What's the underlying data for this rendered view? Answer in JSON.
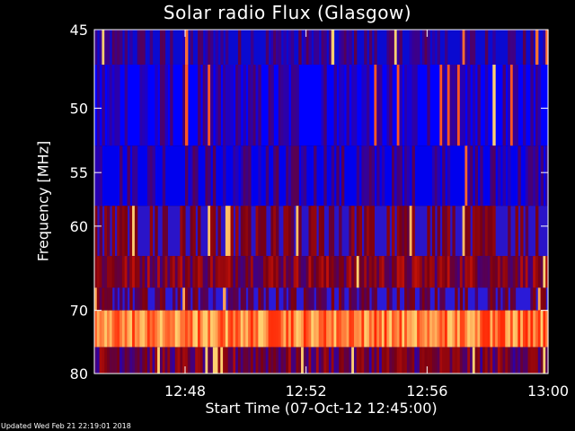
{
  "chart_data": {
    "type": "heatmap",
    "title": "Solar radio Flux (Glasgow)",
    "xlabel": "Start Time (07-Oct-12 12:45:00)",
    "ylabel": "Frequency [MHz]",
    "x_ticks": [
      "12:48",
      "12:52",
      "12:56",
      "13:00"
    ],
    "x_tick_minutes_after_start": [
      3,
      7,
      11,
      15
    ],
    "xlim_minutes_after_start": [
      0,
      15
    ],
    "y_ticks": [
      45,
      50,
      55,
      60,
      70,
      80
    ],
    "ylim_mhz": [
      45,
      80
    ],
    "y_scale": "reciprocal",
    "colormap": [
      "#0000ff",
      "#7a0010",
      "#ff2000",
      "#ffd070"
    ],
    "bands": [
      {
        "f_top": 45,
        "f_bottom": 47.1,
        "base_color": "#0a0ad0",
        "level": 0.1
      },
      {
        "f_top": 47.1,
        "f_bottom": 52.8,
        "base_color": "#0000ff",
        "level": 0.05
      },
      {
        "f_top": 52.8,
        "f_bottom": 58.0,
        "base_color": "#0000ee",
        "level": 0.08
      },
      {
        "f_top": 58.0,
        "f_bottom": 63.2,
        "base_color": "#2a14c8",
        "level": 0.25
      },
      {
        "f_top": 63.2,
        "f_bottom": 67.0,
        "base_color": "#1010c8",
        "level": 0.35
      },
      {
        "f_top": 67.0,
        "f_bottom": 70.0,
        "base_color": "#2a1ad8",
        "level": 0.2
      },
      {
        "f_top": 70.0,
        "f_bottom": 75.5,
        "base_color": "#7a0018",
        "level": 0.85
      },
      {
        "f_top": 75.5,
        "f_bottom": 80.0,
        "base_color": "#3a18c8",
        "level": 0.3
      }
    ],
    "grid": false,
    "legend": "none"
  },
  "footer": {
    "updated": "Updated Wed Feb 21 22:19:01 2018"
  }
}
